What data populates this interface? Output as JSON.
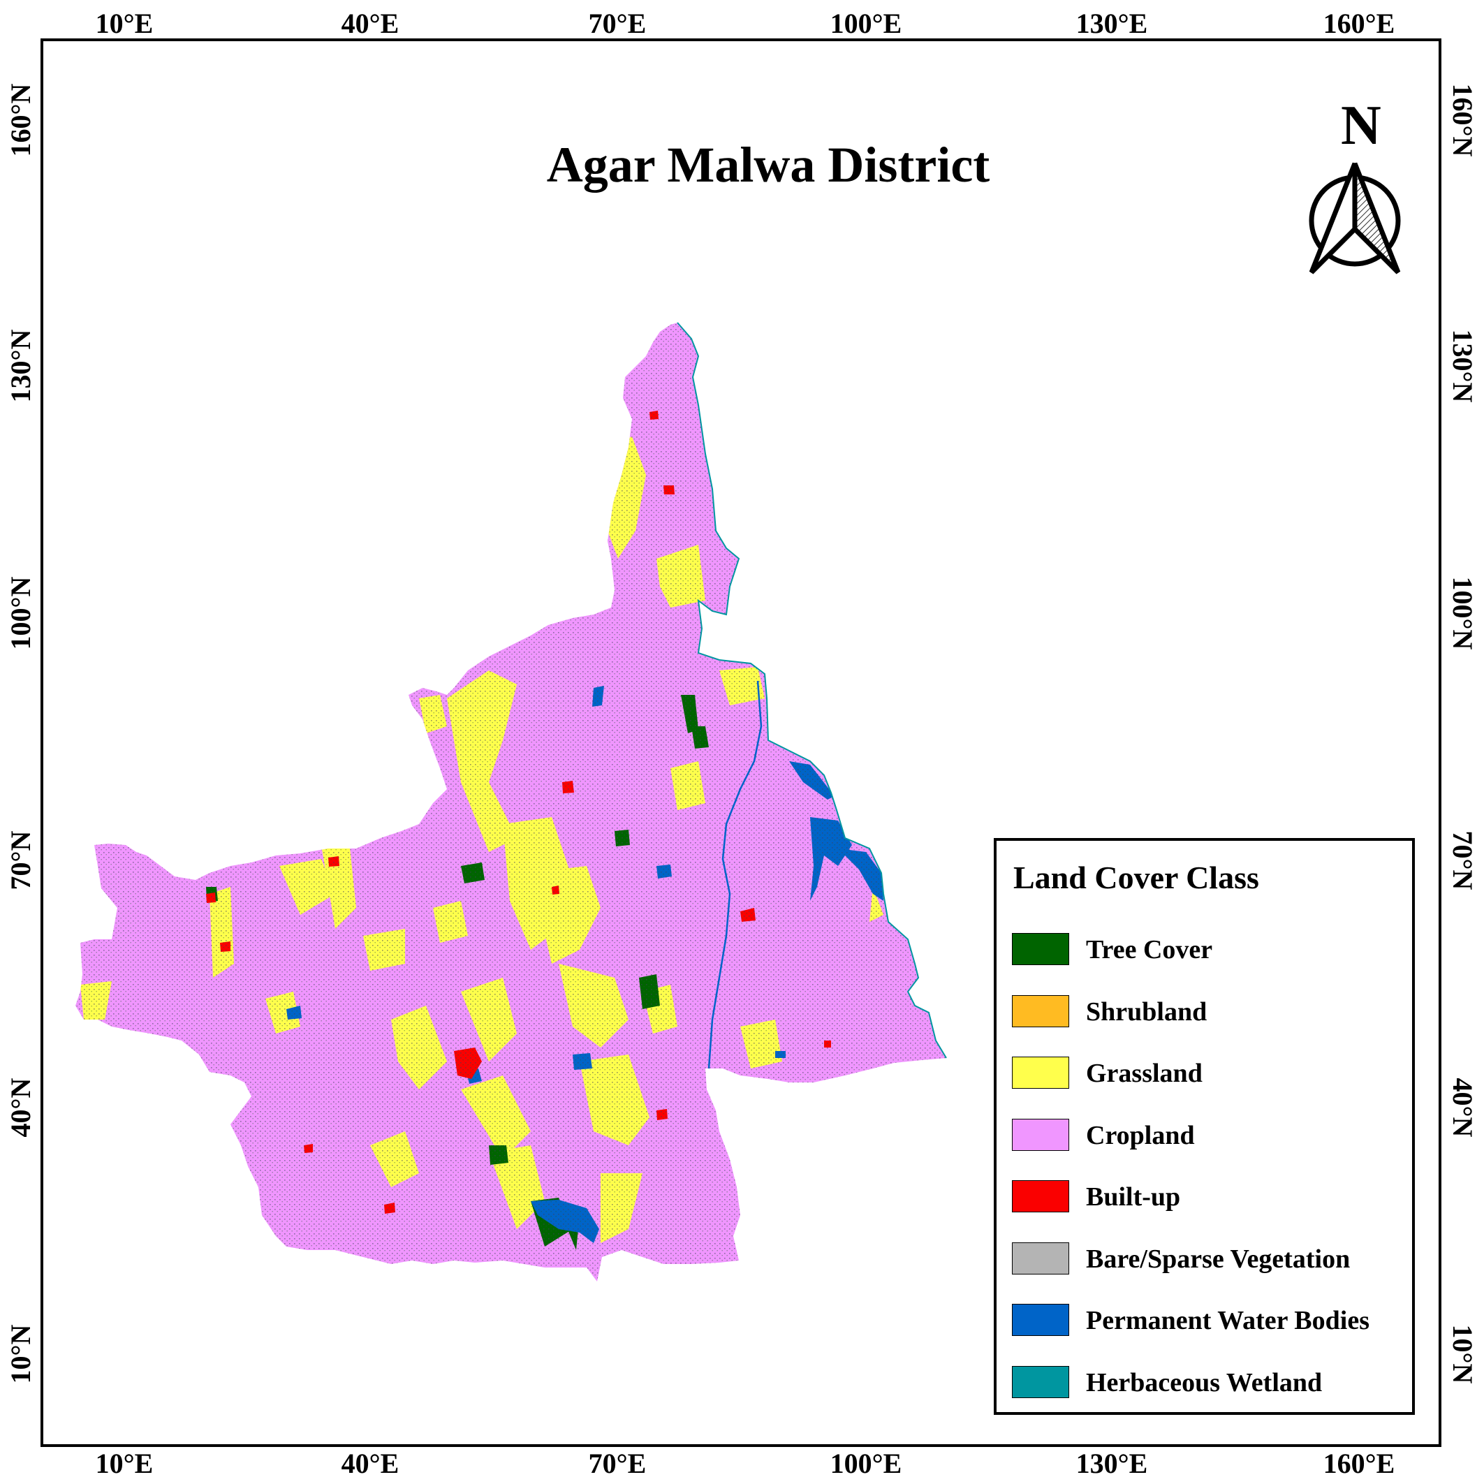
{
  "map": {
    "title": "Agar Malwa District",
    "north_label": "N",
    "longitude_ticks": [
      "10°E",
      "40°E",
      "70°E",
      "100°E",
      "130°E",
      "160°E"
    ],
    "latitude_ticks": [
      "10°N",
      "40°N",
      "70°N",
      "100°N",
      "130°N",
      "160°N"
    ]
  },
  "legend": {
    "title": "Land Cover Class",
    "items": [
      {
        "label": "Tree Cover",
        "color": "#006400"
      },
      {
        "label": "Shrubland",
        "color": "#FFBB22"
      },
      {
        "label": "Grassland",
        "color": "#FFFF4C"
      },
      {
        "label": "Cropland",
        "color": "#F096FF"
      },
      {
        "label": "Built-up",
        "color": "#FA0000"
      },
      {
        "label": "Bare/Sparse Vegetation",
        "color": "#B4B4B4"
      },
      {
        "label": "Permanent Water Bodies",
        "color": "#0064C8"
      },
      {
        "label": "Herbaceous Wetland",
        "color": "#0096A0"
      }
    ]
  }
}
